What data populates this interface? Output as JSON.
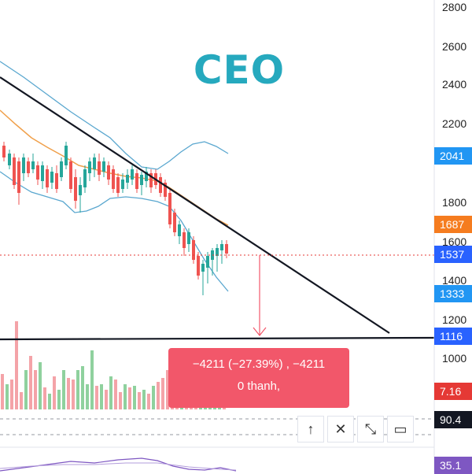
{
  "ticker": "CEO",
  "price_axis": [
    {
      "label": "2800",
      "value": 2800
    },
    {
      "label": "2600",
      "value": 2600
    },
    {
      "label": "2400",
      "value": 2400
    },
    {
      "label": "2200",
      "value": 2200
    },
    {
      "label": "1800",
      "value": 1800
    },
    {
      "label": "1600",
      "value": 1600
    },
    {
      "label": "1400",
      "value": 1400
    },
    {
      "label": "1200",
      "value": 1200
    },
    {
      "label": "1000",
      "value": 1000
    }
  ],
  "price_tags": [
    {
      "label": "2041",
      "color": "#2196f3"
    },
    {
      "label": "1687",
      "color": "#f57c1f"
    },
    {
      "label": "1537",
      "color": "#2962ff"
    },
    {
      "label": "1333",
      "color": "#2196f3"
    },
    {
      "label": "1116",
      "color": "#2962ff"
    },
    {
      "label": "7.16",
      "color": "#e53935"
    },
    {
      "label": "90.4",
      "color": "#131722"
    },
    {
      "label": "35.1",
      "color": "#7e57c2"
    }
  ],
  "measure": {
    "line1": "−4211 (−27.39%) , −4211",
    "line2": "0 thanh,"
  },
  "toolbar": [
    {
      "name": "scroll-up-icon",
      "glyph": "↑"
    },
    {
      "name": "close-icon",
      "glyph": "✕"
    },
    {
      "name": "collapse-icon",
      "glyph": "⤡"
    },
    {
      "name": "maximize-icon",
      "glyph": "▭"
    }
  ],
  "colors": {
    "up": "#26a69a",
    "down": "#ef5350",
    "ticker": "#26a9be",
    "bollinger": "#5aa7cf",
    "ma": "#f0a04b",
    "trendline": "#131722",
    "measure_bg": "#f2576a"
  }
}
